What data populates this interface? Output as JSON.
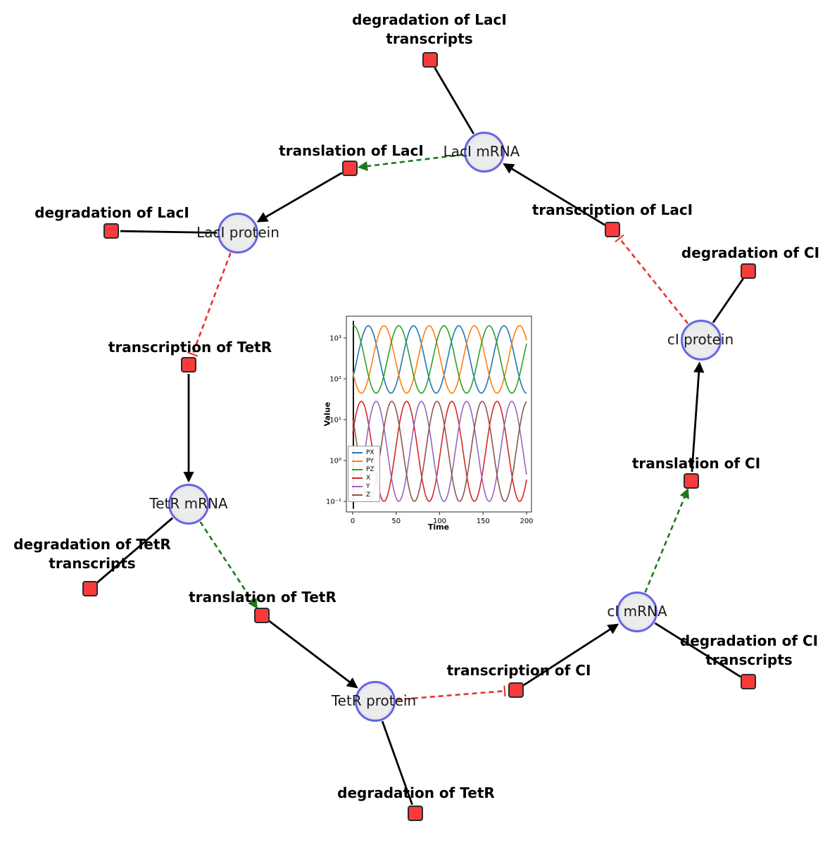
{
  "diagram": {
    "species": {
      "laci_mrna": {
        "label": "LacI mRNA"
      },
      "laci_protein": {
        "label": "LacI protein"
      },
      "tetr_mrna": {
        "label": "TetR mRNA"
      },
      "tetr_protein": {
        "label": "TetR protein"
      },
      "ci_mrna": {
        "label": "cI mRNA"
      },
      "ci_protein": {
        "label": "cI protein"
      }
    },
    "reactions": {
      "deg_laci_tx": {
        "label_line1": "degradation of LacI",
        "label_line2": "transcripts"
      },
      "transl_laci": {
        "label": "translation of LacI"
      },
      "txn_laci": {
        "label": "transcription of LacI"
      },
      "deg_laci": {
        "label": "degradation of LacI"
      },
      "txn_tetr": {
        "label": "transcription of TetR"
      },
      "deg_ci": {
        "label": "degradation of CI"
      },
      "transl_ci": {
        "label": "translation of CI"
      },
      "deg_tetr_tx": {
        "label_line1": "degradation of TetR",
        "label_line2": "transcripts"
      },
      "transl_tetr": {
        "label": "translation of TetR"
      },
      "txn_ci": {
        "label": "transcription of CI"
      },
      "deg_ci_tx": {
        "label_line1": "degradation of CI",
        "label_line2": "transcripts"
      },
      "deg_tetr": {
        "label": "degradation of TetR"
      }
    },
    "node_colors": {
      "species_fill": "#ececec",
      "species_border": "#6464e6",
      "reaction_fill": "#f93b3b",
      "reaction_border": "#2b2b2b"
    },
    "edge_colors": {
      "production": "#000000",
      "modifier": "#1c7a1c",
      "inhibition": "#e83232"
    }
  },
  "chart_data": {
    "type": "line",
    "title": "",
    "xlabel": "Time",
    "ylabel": "Value",
    "x_range": [
      0,
      200
    ],
    "x_ticks": [
      0,
      50,
      100,
      150,
      200
    ],
    "y_scale": "log",
    "y_ticks": [
      "10⁻¹",
      "10⁰",
      "10¹",
      "10²",
      "10³"
    ],
    "ylim_log10": [
      -1.26,
      3.53
    ],
    "legend_position": "lower left",
    "grid": false,
    "series": [
      {
        "name": "PX",
        "color": "#1f77b4",
        "log10_min": 1.65,
        "log10_max": 3.3,
        "period": 52,
        "peak_time": 18
      },
      {
        "name": "PY",
        "color": "#ff7f0e",
        "log10_min": 1.65,
        "log10_max": 3.3,
        "period": 52,
        "peak_time": 36
      },
      {
        "name": "PZ",
        "color": "#2ca02c",
        "log10_min": 1.65,
        "log10_max": 3.3,
        "period": 52,
        "peak_time": 53
      },
      {
        "name": "X",
        "color": "#d62728",
        "log10_min": -1.0,
        "log10_max": 1.45,
        "period": 52,
        "peak_time": 10
      },
      {
        "name": "Y",
        "color": "#9467bd",
        "log10_min": -1.0,
        "log10_max": 1.45,
        "period": 52,
        "peak_time": 27
      },
      {
        "name": "Z",
        "color": "#8c564b",
        "log10_min": -1.0,
        "log10_max": 1.45,
        "period": 52,
        "peak_time": 45
      }
    ],
    "sampling": {
      "t_start": 0,
      "t_end": 200,
      "t_step": 1
    }
  }
}
